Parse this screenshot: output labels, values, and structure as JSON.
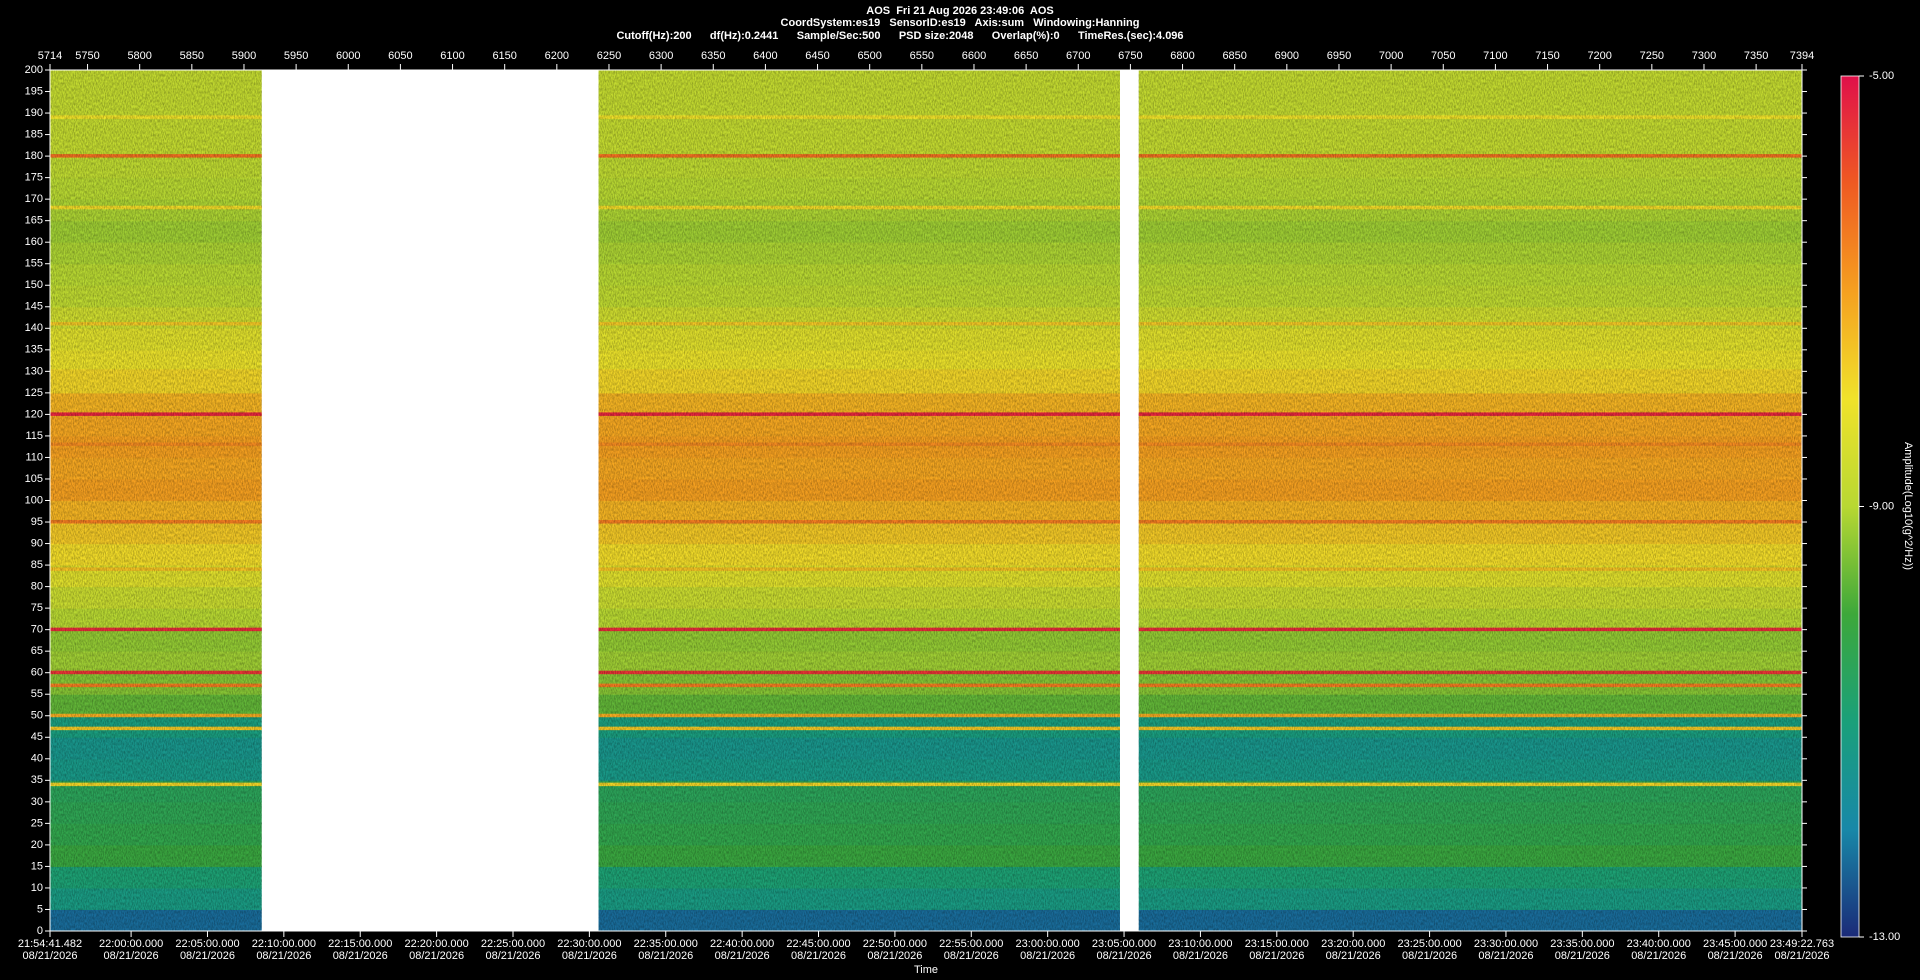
{
  "chart_data": {
    "type": "spectrogram",
    "header": [
      "AOS  Fri 21 Aug 2026 23:49:06  AOS",
      "CoordSystem:es19   SensorID:es19   Axis:sum   Windowing:Hanning",
      "Cutoff(Hz):200      df(Hz):0.2441      Sample/Sec:500      PSD size:2048      Overlap(%):0      TimeRes.(sec):4.096"
    ],
    "x_label": "Time",
    "colorbar_label": "Amplitude(Log10(g^2/Hz))",
    "xlim": [
      5714,
      7394
    ],
    "xticks": [
      5714,
      5750,
      5800,
      5850,
      5900,
      5950,
      6000,
      6050,
      6100,
      6150,
      6200,
      6250,
      6300,
      6350,
      6400,
      6450,
      6500,
      6550,
      6600,
      6650,
      6700,
      6750,
      6800,
      6850,
      6900,
      6950,
      7000,
      7050,
      7100,
      7150,
      7200,
      7250,
      7300,
      7350,
      7394
    ],
    "time_ticks": [
      {
        "value": 5714,
        "label": "21:54:41.482"
      },
      {
        "value": 5791.76,
        "label": "22:00:00.000"
      },
      {
        "value": 5865.0,
        "label": "22:05:00.000"
      },
      {
        "value": 5938.24,
        "label": "22:10:00.000"
      },
      {
        "value": 6011.48,
        "label": "22:15:00.000"
      },
      {
        "value": 6084.73,
        "label": "22:20:00.000"
      },
      {
        "value": 6157.97,
        "label": "22:25:00.000"
      },
      {
        "value": 6231.21,
        "label": "22:30:00.000"
      },
      {
        "value": 6304.45,
        "label": "22:35:00.000"
      },
      {
        "value": 6377.7,
        "label": "22:40:00.000"
      },
      {
        "value": 6450.94,
        "label": "22:45:00.000"
      },
      {
        "value": 6524.18,
        "label": "22:50:00.000"
      },
      {
        "value": 6597.42,
        "label": "22:55:00.000"
      },
      {
        "value": 6670.67,
        "label": "23:00:00.000"
      },
      {
        "value": 6743.91,
        "label": "23:05:00.000"
      },
      {
        "value": 6817.15,
        "label": "23:10:00.000"
      },
      {
        "value": 6890.39,
        "label": "23:15:00.000"
      },
      {
        "value": 6963.64,
        "label": "23:20:00.000"
      },
      {
        "value": 7036.88,
        "label": "23:25:00.000"
      },
      {
        "value": 7110.12,
        "label": "23:30:00.000"
      },
      {
        "value": 7183.36,
        "label": "23:35:00.000"
      },
      {
        "value": 7256.61,
        "label": "23:40:00.000"
      },
      {
        "value": 7329.85,
        "label": "23:45:00.000"
      },
      {
        "value": 7394,
        "label": "23:49:22.763"
      }
    ],
    "time_tick_dates": [
      "08/21/2026",
      "08/21/2026",
      "08/21/2026",
      "08/21/2026",
      "08/21/2026",
      "08/21/2026",
      "08/21/2026",
      "08/21/2026",
      "08/21/2026",
      "08/21/2026",
      "08/21/2026",
      "08/21/2026",
      "08/21/2026",
      "08/21/2026",
      "08/21/2026",
      "08/21/2026",
      "08/21/2026",
      "08/21/2026",
      "08/21/2026",
      "08/21/2026",
      "08/21/2026",
      "08/21/2026",
      "08/21/2026",
      "08/21/2026"
    ],
    "ylim": [
      0,
      200
    ],
    "yticks": [
      0,
      5,
      10,
      15,
      20,
      25,
      30,
      35,
      40,
      45,
      50,
      55,
      60,
      65,
      70,
      75,
      80,
      85,
      90,
      95,
      100,
      105,
      110,
      115,
      120,
      125,
      130,
      135,
      140,
      145,
      150,
      155,
      160,
      165,
      170,
      175,
      180,
      185,
      190,
      195,
      200
    ],
    "data_segments": [
      [
        5714,
        5917
      ],
      [
        6240,
        6740
      ],
      [
        6758,
        7394
      ]
    ],
    "frequency_bins": [
      0,
      5,
      10,
      15,
      20,
      25,
      30,
      35,
      40,
      45,
      50,
      55,
      60,
      65,
      70,
      75,
      80,
      85,
      90,
      95,
      100,
      105,
      110,
      115,
      120,
      125,
      130,
      135,
      140,
      145,
      150,
      155,
      160,
      165,
      170,
      175,
      180,
      185,
      190,
      195,
      200
    ],
    "amplitudes": [
      -12.3,
      -11.2,
      -10.9,
      -10.1,
      -10.3,
      -10.4,
      -10.5,
      -11.3,
      -11.4,
      -11.1,
      -9.7,
      -9.4,
      -9.2,
      -9.3,
      -9.0,
      -8.7,
      -8.3,
      -7.9,
      -7.6,
      -7.3,
      -7.0,
      -7.1,
      -7.0,
      -7.1,
      -7.3,
      -7.8,
      -8.1,
      -8.3,
      -8.6,
      -8.9,
      -9.0,
      -9.1,
      -9.2,
      -9.1,
      -9.0,
      -8.9,
      -8.8,
      -8.8,
      -8.8,
      -8.8
    ],
    "line_frequencies": [
      120,
      70,
      60,
      57,
      180,
      95,
      113,
      50,
      47,
      34,
      84,
      141,
      130,
      168,
      189
    ],
    "line_amplitudes": [
      -5.3,
      -5.4,
      -5.5,
      -6.5,
      -6.3,
      -6.5,
      -6.7,
      -7.2,
      -7.6,
      -7.8,
      -7.5,
      -7.6,
      -7.8,
      -7.9,
      -8.0
    ],
    "clim": [
      -13,
      -5
    ],
    "cticks": [
      {
        "value": -13,
        "label": "-13.00"
      },
      {
        "value": -9,
        "label": "-9.00"
      },
      {
        "value": -5,
        "label": "-5.00"
      }
    ],
    "colormap": [
      "#1b2a78",
      "#1888a8",
      "#1aa07a",
      "#3da83a",
      "#b8d832",
      "#f0e22a",
      "#f5a020",
      "#ef5a22",
      "#e0104a"
    ]
  }
}
